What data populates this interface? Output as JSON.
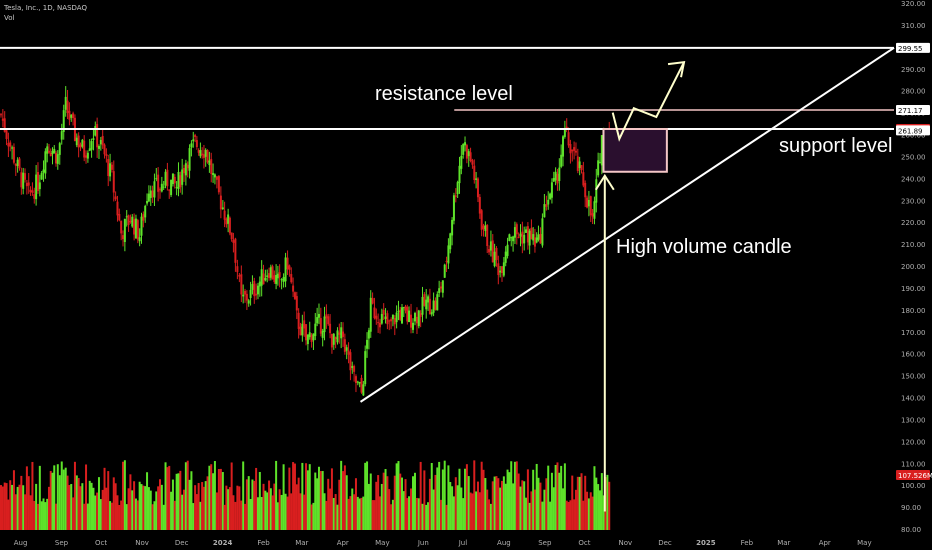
{
  "header": {
    "symbol_line": "Tesla, Inc., 1D, NASDAQ",
    "volume_label": "Vol"
  },
  "annotations": {
    "resistance": "resistance level",
    "support": "support level",
    "high_volume": "High volume candle"
  },
  "colors": {
    "background": "#000000",
    "up": "#5ee32a",
    "down": "#d91f1f",
    "annotation_line": "#ffffff",
    "resistance_line": "#f4c6c6",
    "zone_fill": "#2a0f2e",
    "zone_border": "#f4c6c6",
    "arrow": "#ffffcc"
  },
  "chart_data": {
    "type": "candlestick",
    "y_ticks": [
      80,
      90,
      100,
      110,
      120,
      130,
      140,
      150,
      160,
      170,
      180,
      190,
      200,
      210,
      220,
      230,
      240,
      250,
      260,
      270,
      280,
      290,
      300,
      310,
      320
    ],
    "ylim": [
      80,
      320
    ],
    "x_ticks": [
      "Aug",
      "Sep",
      "Oct",
      "Nov",
      "Dec",
      "2024",
      "Feb",
      "Mar",
      "Apr",
      "May",
      "Jun",
      "Jul",
      "Aug",
      "Sep",
      "Oct",
      "Nov",
      "Dec",
      "2025",
      "Feb",
      "Mar",
      "Apr",
      "May"
    ],
    "price_labels": [
      {
        "text": "299.55",
        "value": 299.55,
        "style": "white"
      },
      {
        "text": "271.17",
        "value": 271.17,
        "style": "white"
      },
      {
        "text": "262.51",
        "value": 262.51,
        "style": "red"
      },
      {
        "text": "261.89",
        "value": 261.89,
        "style": "white"
      },
      {
        "text": "107.526M",
        "value": 107.526,
        "style": "red"
      }
    ],
    "horizontal_levels": [
      {
        "name": "upper",
        "value": 299.55
      },
      {
        "name": "resistance",
        "value": 271.17
      },
      {
        "name": "support",
        "value": 262.51
      }
    ],
    "zone": {
      "from": "2024-10-23",
      "to": "2024-12-10",
      "low": 243,
      "high": 262.51
    },
    "trendline": {
      "from": {
        "date": "2024-04-22",
        "price": 138
      },
      "to": {
        "date": "2025-05-31",
        "price": 299.55
      }
    },
    "price_path": [
      {
        "date": "2023-07-24",
        "price": 269
      },
      {
        "date": "2023-07-31",
        "price": 255
      },
      {
        "date": "2023-08-07",
        "price": 242
      },
      {
        "date": "2023-08-14",
        "price": 232
      },
      {
        "date": "2023-08-21",
        "price": 238
      },
      {
        "date": "2023-08-28",
        "price": 256
      },
      {
        "date": "2023-09-05",
        "price": 250
      },
      {
        "date": "2023-09-11",
        "price": 273
      },
      {
        "date": "2023-09-18",
        "price": 260
      },
      {
        "date": "2023-09-25",
        "price": 252
      },
      {
        "date": "2023-10-02",
        "price": 261
      },
      {
        "date": "2023-10-09",
        "price": 253
      },
      {
        "date": "2023-10-16",
        "price": 240
      },
      {
        "date": "2023-10-23",
        "price": 215
      },
      {
        "date": "2023-10-30",
        "price": 222
      },
      {
        "date": "2023-11-06",
        "price": 214
      },
      {
        "date": "2023-11-13",
        "price": 237
      },
      {
        "date": "2023-11-20",
        "price": 235
      },
      {
        "date": "2023-11-27",
        "price": 239
      },
      {
        "date": "2023-12-04",
        "price": 236
      },
      {
        "date": "2023-12-11",
        "price": 248
      },
      {
        "date": "2023-12-18",
        "price": 256
      },
      {
        "date": "2023-12-26",
        "price": 253
      },
      {
        "date": "2024-01-02",
        "price": 237
      },
      {
        "date": "2024-01-08",
        "price": 227
      },
      {
        "date": "2024-01-16",
        "price": 212
      },
      {
        "date": "2024-01-22",
        "price": 184
      },
      {
        "date": "2024-01-29",
        "price": 187
      },
      {
        "date": "2024-02-05",
        "price": 193
      },
      {
        "date": "2024-02-12",
        "price": 199
      },
      {
        "date": "2024-02-20",
        "price": 191
      },
      {
        "date": "2024-02-26",
        "price": 202
      },
      {
        "date": "2024-03-04",
        "price": 176
      },
      {
        "date": "2024-03-11",
        "price": 166
      },
      {
        "date": "2024-03-18",
        "price": 172
      },
      {
        "date": "2024-03-25",
        "price": 175
      },
      {
        "date": "2024-04-01",
        "price": 165
      },
      {
        "date": "2024-04-08",
        "price": 168
      },
      {
        "date": "2024-04-15",
        "price": 150
      },
      {
        "date": "2024-04-22",
        "price": 142
      },
      {
        "date": "2024-04-29",
        "price": 181
      },
      {
        "date": "2024-05-06",
        "price": 177
      },
      {
        "date": "2024-05-13",
        "price": 172
      },
      {
        "date": "2024-05-20",
        "price": 179
      },
      {
        "date": "2024-05-28",
        "price": 176
      },
      {
        "date": "2024-06-03",
        "price": 178
      },
      {
        "date": "2024-06-10",
        "price": 183
      },
      {
        "date": "2024-06-17",
        "price": 182
      },
      {
        "date": "2024-06-24",
        "price": 197
      },
      {
        "date": "2024-07-01",
        "price": 230
      },
      {
        "date": "2024-07-08",
        "price": 257
      },
      {
        "date": "2024-07-15",
        "price": 246
      },
      {
        "date": "2024-07-22",
        "price": 220
      },
      {
        "date": "2024-07-29",
        "price": 207
      },
      {
        "date": "2024-08-05",
        "price": 198
      },
      {
        "date": "2024-08-12",
        "price": 216
      },
      {
        "date": "2024-08-19",
        "price": 214
      },
      {
        "date": "2024-08-26",
        "price": 214
      },
      {
        "date": "2024-09-03",
        "price": 210
      },
      {
        "date": "2024-09-09",
        "price": 230
      },
      {
        "date": "2024-09-16",
        "price": 238
      },
      {
        "date": "2024-09-23",
        "price": 260
      },
      {
        "date": "2024-09-30",
        "price": 250
      },
      {
        "date": "2024-10-07",
        "price": 238
      },
      {
        "date": "2024-10-14",
        "price": 220
      },
      {
        "date": "2024-10-21",
        "price": 260
      },
      {
        "date": "2024-10-28",
        "price": 262
      }
    ],
    "projection_arrow": [
      {
        "date": "2024-10-30",
        "price": 270
      },
      {
        "date": "2024-11-04",
        "price": 258
      },
      {
        "date": "2024-11-15",
        "price": 272
      },
      {
        "date": "2024-12-02",
        "price": 268
      },
      {
        "date": "2024-12-23",
        "price": 293
      }
    ],
    "high_volume_marker": {
      "date": "2024-10-24",
      "price_from": 243,
      "price_to": 88
    },
    "volume_scale_note": "millions"
  }
}
